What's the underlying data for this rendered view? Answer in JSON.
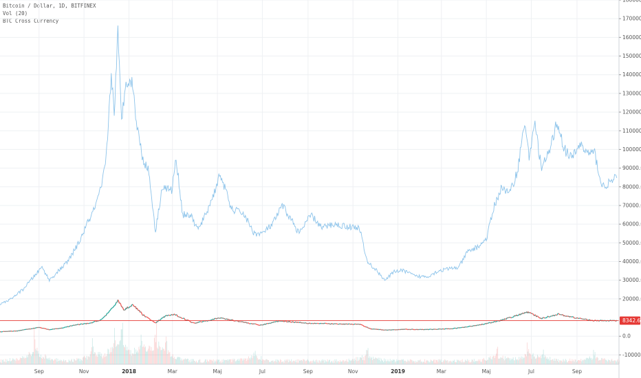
{
  "legend": {
    "symbol_line": "Bitcoin / Dollar, 1D, BITFINEX",
    "volume_line": "Vol (20)",
    "indicator_line": "BTC Cross Currency"
  },
  "price_badge": {
    "label": "8342.6",
    "value": 8342.6,
    "color": "#e53935"
  },
  "colors": {
    "cross_line": "#8cc3ea",
    "up": "#26a69a",
    "down": "#ef5350",
    "grid": "#eef0f3"
  },
  "chart_data": {
    "type": "line",
    "x_axis": {
      "ticks": [
        {
          "label": "Sep",
          "date": "2017-09-01",
          "bold": false
        },
        {
          "label": "Nov",
          "date": "2017-11-01",
          "bold": false
        },
        {
          "label": "2018",
          "date": "2018-01-01",
          "bold": true
        },
        {
          "label": "Mar",
          "date": "2018-03-01",
          "bold": false
        },
        {
          "label": "Maj",
          "date": "2018-05-01",
          "bold": false
        },
        {
          "label": "Jul",
          "date": "2018-07-01",
          "bold": false
        },
        {
          "label": "Sep",
          "date": "2018-09-01",
          "bold": false
        },
        {
          "label": "Nov",
          "date": "2018-11-01",
          "bold": false
        },
        {
          "label": "2019",
          "date": "2019-01-01",
          "bold": true
        },
        {
          "label": "Mar",
          "date": "2019-03-01",
          "bold": false
        },
        {
          "label": "Maj",
          "date": "2019-05-01",
          "bold": false
        },
        {
          "label": "Jul",
          "date": "2019-07-01",
          "bold": false
        },
        {
          "label": "Sep",
          "date": "2019-09-01",
          "bold": false
        }
      ],
      "range": [
        "2017-07-10",
        "2019-10-28"
      ]
    },
    "y_axis": {
      "range": [
        -15000,
        180000
      ],
      "ticks": [
        {
          "label": "180000.0",
          "value": 180000
        },
        {
          "label": "170000.0",
          "value": 170000
        },
        {
          "label": "160000.0",
          "value": 160000
        },
        {
          "label": "150000.0",
          "value": 150000
        },
        {
          "label": "140000.0",
          "value": 140000
        },
        {
          "label": "130000.0",
          "value": 130000
        },
        {
          "label": "120000.0",
          "value": 120000
        },
        {
          "label": "110000.0",
          "value": 110000
        },
        {
          "label": "100000.0",
          "value": 100000
        },
        {
          "label": "90000.0",
          "value": 90000
        },
        {
          "label": "80000.0",
          "value": 80000
        },
        {
          "label": "70000.0",
          "value": 70000
        },
        {
          "label": "60000.0",
          "value": 60000
        },
        {
          "label": "50000.0",
          "value": 50000
        },
        {
          "label": "40000.0",
          "value": 40000
        },
        {
          "label": "30000.0",
          "value": 30000
        },
        {
          "label": "20000.0",
          "value": 20000
        },
        {
          "label": "0.0",
          "value": 0
        },
        {
          "label": "-10000.0",
          "value": -10000
        }
      ]
    },
    "grid": true,
    "series": [
      {
        "name": "BTC Cross Currency",
        "points": [
          [
            "2017-07-10",
            17000
          ],
          [
            "2017-07-25",
            20000
          ],
          [
            "2017-08-10",
            25000
          ],
          [
            "2017-08-25",
            32000
          ],
          [
            "2017-09-05",
            37000
          ],
          [
            "2017-09-15",
            30000
          ],
          [
            "2017-09-25",
            34000
          ],
          [
            "2017-10-10",
            40000
          ],
          [
            "2017-10-25",
            50000
          ],
          [
            "2017-11-05",
            60000
          ],
          [
            "2017-11-15",
            68000
          ],
          [
            "2017-11-25",
            80000
          ],
          [
            "2017-12-01",
            95000
          ],
          [
            "2017-12-08",
            140000
          ],
          [
            "2017-12-12",
            120000
          ],
          [
            "2017-12-17",
            162000
          ],
          [
            "2017-12-22",
            115000
          ],
          [
            "2017-12-28",
            138000
          ],
          [
            "2018-01-06",
            135000
          ],
          [
            "2018-01-12",
            112000
          ],
          [
            "2018-01-20",
            95000
          ],
          [
            "2018-01-28",
            88000
          ],
          [
            "2018-02-06",
            56000
          ],
          [
            "2018-02-15",
            80000
          ],
          [
            "2018-02-28",
            78000
          ],
          [
            "2018-03-06",
            95000
          ],
          [
            "2018-03-15",
            65000
          ],
          [
            "2018-03-25",
            65000
          ],
          [
            "2018-04-05",
            57000
          ],
          [
            "2018-04-15",
            65000
          ],
          [
            "2018-04-25",
            75000
          ],
          [
            "2018-05-05",
            87000
          ],
          [
            "2018-05-20",
            68000
          ],
          [
            "2018-06-05",
            66000
          ],
          [
            "2018-06-20",
            55000
          ],
          [
            "2018-07-01",
            55000
          ],
          [
            "2018-07-15",
            60000
          ],
          [
            "2018-07-28",
            70000
          ],
          [
            "2018-08-10",
            62000
          ],
          [
            "2018-08-20",
            55000
          ],
          [
            "2018-09-05",
            65000
          ],
          [
            "2018-09-20",
            58000
          ],
          [
            "2018-10-05",
            60000
          ],
          [
            "2018-10-20",
            59000
          ],
          [
            "2018-11-10",
            58000
          ],
          [
            "2018-11-20",
            40000
          ],
          [
            "2018-12-01",
            36000
          ],
          [
            "2018-12-15",
            30000
          ],
          [
            "2018-12-28",
            35000
          ],
          [
            "2019-01-10",
            35000
          ],
          [
            "2019-01-25",
            32000
          ],
          [
            "2019-02-10",
            32000
          ],
          [
            "2019-02-25",
            35000
          ],
          [
            "2019-03-10",
            36000
          ],
          [
            "2019-03-25",
            37000
          ],
          [
            "2019-04-05",
            45000
          ],
          [
            "2019-04-20",
            48000
          ],
          [
            "2019-05-01",
            52000
          ],
          [
            "2019-05-12",
            70000
          ],
          [
            "2019-05-22",
            80000
          ],
          [
            "2019-06-01",
            76000
          ],
          [
            "2019-06-12",
            88000
          ],
          [
            "2019-06-22",
            115000
          ],
          [
            "2019-06-28",
            95000
          ],
          [
            "2019-07-05",
            115000
          ],
          [
            "2019-07-15",
            90000
          ],
          [
            "2019-07-25",
            98000
          ],
          [
            "2019-08-05",
            115000
          ],
          [
            "2019-08-15",
            100000
          ],
          [
            "2019-08-25",
            95000
          ],
          [
            "2019-09-05",
            103000
          ],
          [
            "2019-09-15",
            98000
          ],
          [
            "2019-09-25",
            98000
          ],
          [
            "2019-10-05",
            80000
          ],
          [
            "2019-10-15",
            82000
          ],
          [
            "2019-10-25",
            85000
          ]
        ]
      },
      {
        "name": "Bitcoin / Dollar",
        "points": [
          [
            "2017-07-10",
            2400
          ],
          [
            "2017-08-01",
            2800
          ],
          [
            "2017-09-01",
            4700
          ],
          [
            "2017-09-15",
            3500
          ],
          [
            "2017-10-01",
            4300
          ],
          [
            "2017-10-20",
            6000
          ],
          [
            "2017-11-10",
            7000
          ],
          [
            "2017-11-25",
            9000
          ],
          [
            "2017-12-10",
            15000
          ],
          [
            "2017-12-17",
            19500
          ],
          [
            "2017-12-25",
            14000
          ],
          [
            "2018-01-06",
            17000
          ],
          [
            "2018-01-20",
            11500
          ],
          [
            "2018-02-06",
            7000
          ],
          [
            "2018-02-20",
            11000
          ],
          [
            "2018-03-05",
            11500
          ],
          [
            "2018-03-30",
            7000
          ],
          [
            "2018-05-05",
            9800
          ],
          [
            "2018-06-28",
            5900
          ],
          [
            "2018-07-25",
            8200
          ],
          [
            "2018-09-01",
            7000
          ],
          [
            "2018-10-15",
            6500
          ],
          [
            "2018-11-10",
            6400
          ],
          [
            "2018-11-25",
            4000
          ],
          [
            "2018-12-15",
            3300
          ],
          [
            "2019-01-10",
            3700
          ],
          [
            "2019-02-10",
            3600
          ],
          [
            "2019-03-15",
            4000
          ],
          [
            "2019-04-05",
            5000
          ],
          [
            "2019-05-15",
            7800
          ],
          [
            "2019-06-26",
            12900
          ],
          [
            "2019-07-15",
            9500
          ],
          [
            "2019-08-06",
            11800
          ],
          [
            "2019-09-01",
            9700
          ],
          [
            "2019-09-25",
            8300
          ],
          [
            "2019-10-25",
            8342
          ]
        ]
      }
    ],
    "volume": {
      "name": "Vol (20)",
      "peaks": [
        [
          "2017-08-25",
          34000
        ],
        [
          "2017-11-12",
          22000
        ],
        [
          "2017-12-12",
          28000
        ],
        [
          "2017-12-22",
          34000
        ],
        [
          "2018-01-18",
          30000
        ],
        [
          "2018-02-06",
          40000
        ],
        [
          "2018-02-20",
          20000
        ],
        [
          "2018-06-20",
          14000
        ],
        [
          "2018-11-20",
          17000
        ],
        [
          "2019-05-15",
          16000
        ],
        [
          "2019-06-26",
          18000
        ],
        [
          "2019-07-16",
          12000
        ],
        [
          "2019-09-24",
          12000
        ]
      ]
    }
  }
}
